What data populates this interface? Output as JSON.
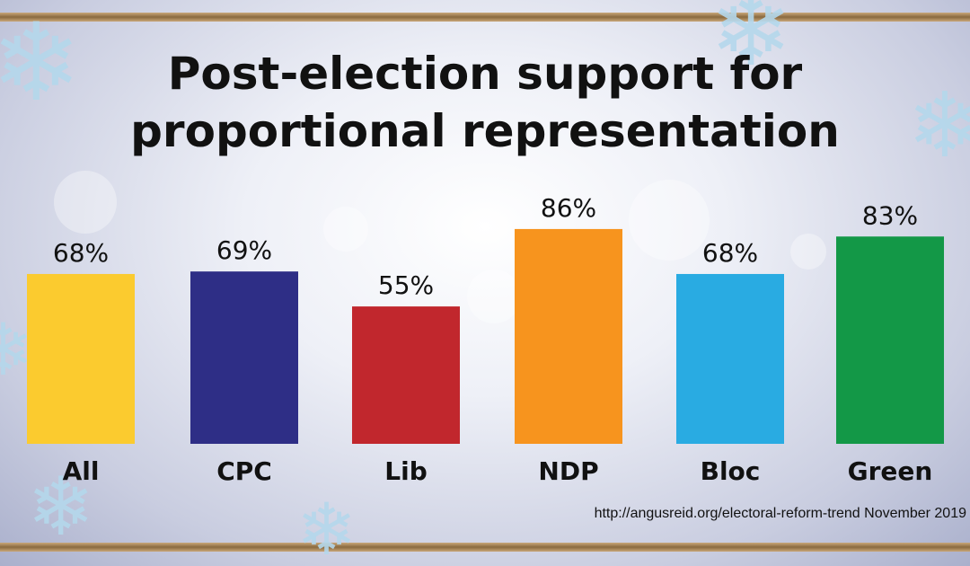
{
  "title_lines": [
    "Post-election support for",
    "proportional representation"
  ],
  "source": "http://angusreid.org/electoral-reform-trend November 2019",
  "chart_data": {
    "type": "bar",
    "title": "Post-election support for proportional representation",
    "categories": [
      "All",
      "CPC",
      "Lib",
      "NDP",
      "Bloc",
      "Green"
    ],
    "values": [
      68,
      69,
      55,
      86,
      68,
      83
    ],
    "value_labels": [
      "68%",
      "69%",
      "55%",
      "86%",
      "68%",
      "83%"
    ],
    "colors": [
      "#FBCB2F",
      "#2E2E86",
      "#C1272D",
      "#F7941E",
      "#29ABE2",
      "#139847"
    ],
    "xlabel": "",
    "ylabel": "",
    "ylim": [
      0,
      100
    ],
    "grid": false
  }
}
